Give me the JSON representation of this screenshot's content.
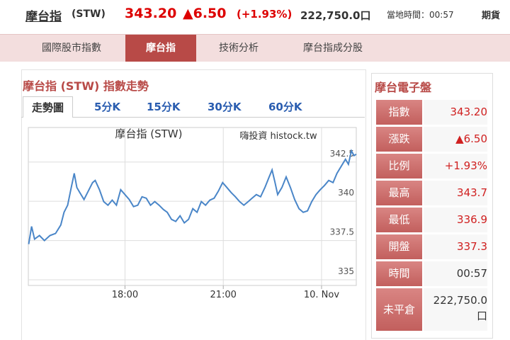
{
  "header": {
    "title": "摩台指",
    "code": "(STW)",
    "price": "343.20",
    "change": "▲6.50",
    "pct": "(+1.93%)",
    "volume": "222,750.0口",
    "time": "當地時間：00:57",
    "menu": "期貨"
  },
  "nav": [
    "國際股市指數",
    "摩台指",
    "技術分析",
    "摩台指成分股"
  ],
  "section_title": "摩台指 (STW) 指數走勢",
  "tabs": [
    "走勢圖",
    "5分K",
    "15分K",
    "30分K",
    "60分K"
  ],
  "chart_data": {
    "type": "line",
    "title": "摩台指 (STW)",
    "watermark": "嗨投資 histock.tw",
    "color": "#4a86c8",
    "x": [
      15.06,
      15.15,
      15.24,
      15.39,
      15.54,
      15.71,
      15.88,
      16.04,
      16.14,
      16.25,
      16.36,
      16.45,
      16.53,
      16.62,
      16.75,
      16.88,
      17.01,
      17.09,
      17.22,
      17.35,
      17.48,
      17.61,
      17.74,
      17.87,
      18.0,
      18.13,
      18.26,
      18.39,
      18.52,
      18.65,
      18.78,
      18.91,
      19.04,
      19.17,
      19.29,
      19.42,
      19.55,
      19.68,
      19.81,
      19.94,
      20.07,
      20.2,
      20.33,
      20.46,
      20.59,
      20.72,
      20.85,
      20.98,
      21.11,
      21.24,
      21.37,
      21.5,
      21.63,
      21.76,
      21.88,
      22.01,
      22.14,
      22.27,
      22.4,
      22.49,
      22.58,
      22.66,
      22.79,
      22.92,
      23.05,
      23.18,
      23.31,
      23.44,
      23.57,
      23.7,
      23.83,
      23.96,
      24.09,
      24.22,
      24.35,
      24.47,
      24.6,
      24.73,
      24.82,
      24.91,
      24.99,
      25.06
    ],
    "values": [
      337.27,
      338.4,
      337.59,
      337.82,
      337.5,
      337.82,
      337.95,
      338.49,
      339.3,
      339.75,
      340.88,
      341.78,
      340.88,
      340.56,
      340.11,
      340.65,
      341.19,
      341.33,
      340.74,
      339.98,
      339.75,
      340.07,
      339.75,
      340.74,
      340.43,
      340.11,
      339.66,
      339.75,
      340.29,
      340.2,
      339.75,
      339.98,
      339.75,
      339.48,
      339.3,
      338.85,
      338.72,
      339.08,
      338.63,
      338.85,
      339.53,
      339.3,
      339.98,
      339.75,
      340.07,
      340.2,
      340.65,
      341.19,
      340.88,
      340.56,
      340.29,
      339.98,
      339.75,
      339.98,
      340.2,
      340.43,
      340.29,
      340.88,
      341.55,
      342.0,
      341.19,
      340.43,
      340.88,
      341.55,
      340.88,
      340.11,
      339.53,
      339.3,
      339.39,
      339.98,
      340.43,
      340.74,
      341.01,
      341.33,
      341.19,
      341.78,
      342.23,
      342.68,
      342.36,
      343.22,
      342.91,
      343.0
    ],
    "xlim": [
      15.05,
      25.06
    ],
    "xticks": [
      {
        "value": 18,
        "label": "18:00"
      },
      {
        "value": 21,
        "label": "21:00"
      },
      {
        "value": 24,
        "label": "10. Nov"
      }
    ],
    "ylim": [
      334.64,
      344.7
    ],
    "yticks": [
      335,
      337.5,
      340,
      342.5
    ],
    "grid": true
  },
  "panel": {
    "title": "摩台電子盤",
    "rows": [
      [
        "指數",
        "343.20"
      ],
      [
        "漲跌",
        "▲6.50"
      ],
      [
        "比例",
        "+1.93%"
      ],
      [
        "最高",
        "343.7"
      ],
      [
        "最低",
        "336.9"
      ],
      [
        "開盤",
        "337.3"
      ],
      [
        "時間",
        "00:57"
      ],
      [
        "未平倉",
        "222,750.0 口"
      ]
    ]
  }
}
